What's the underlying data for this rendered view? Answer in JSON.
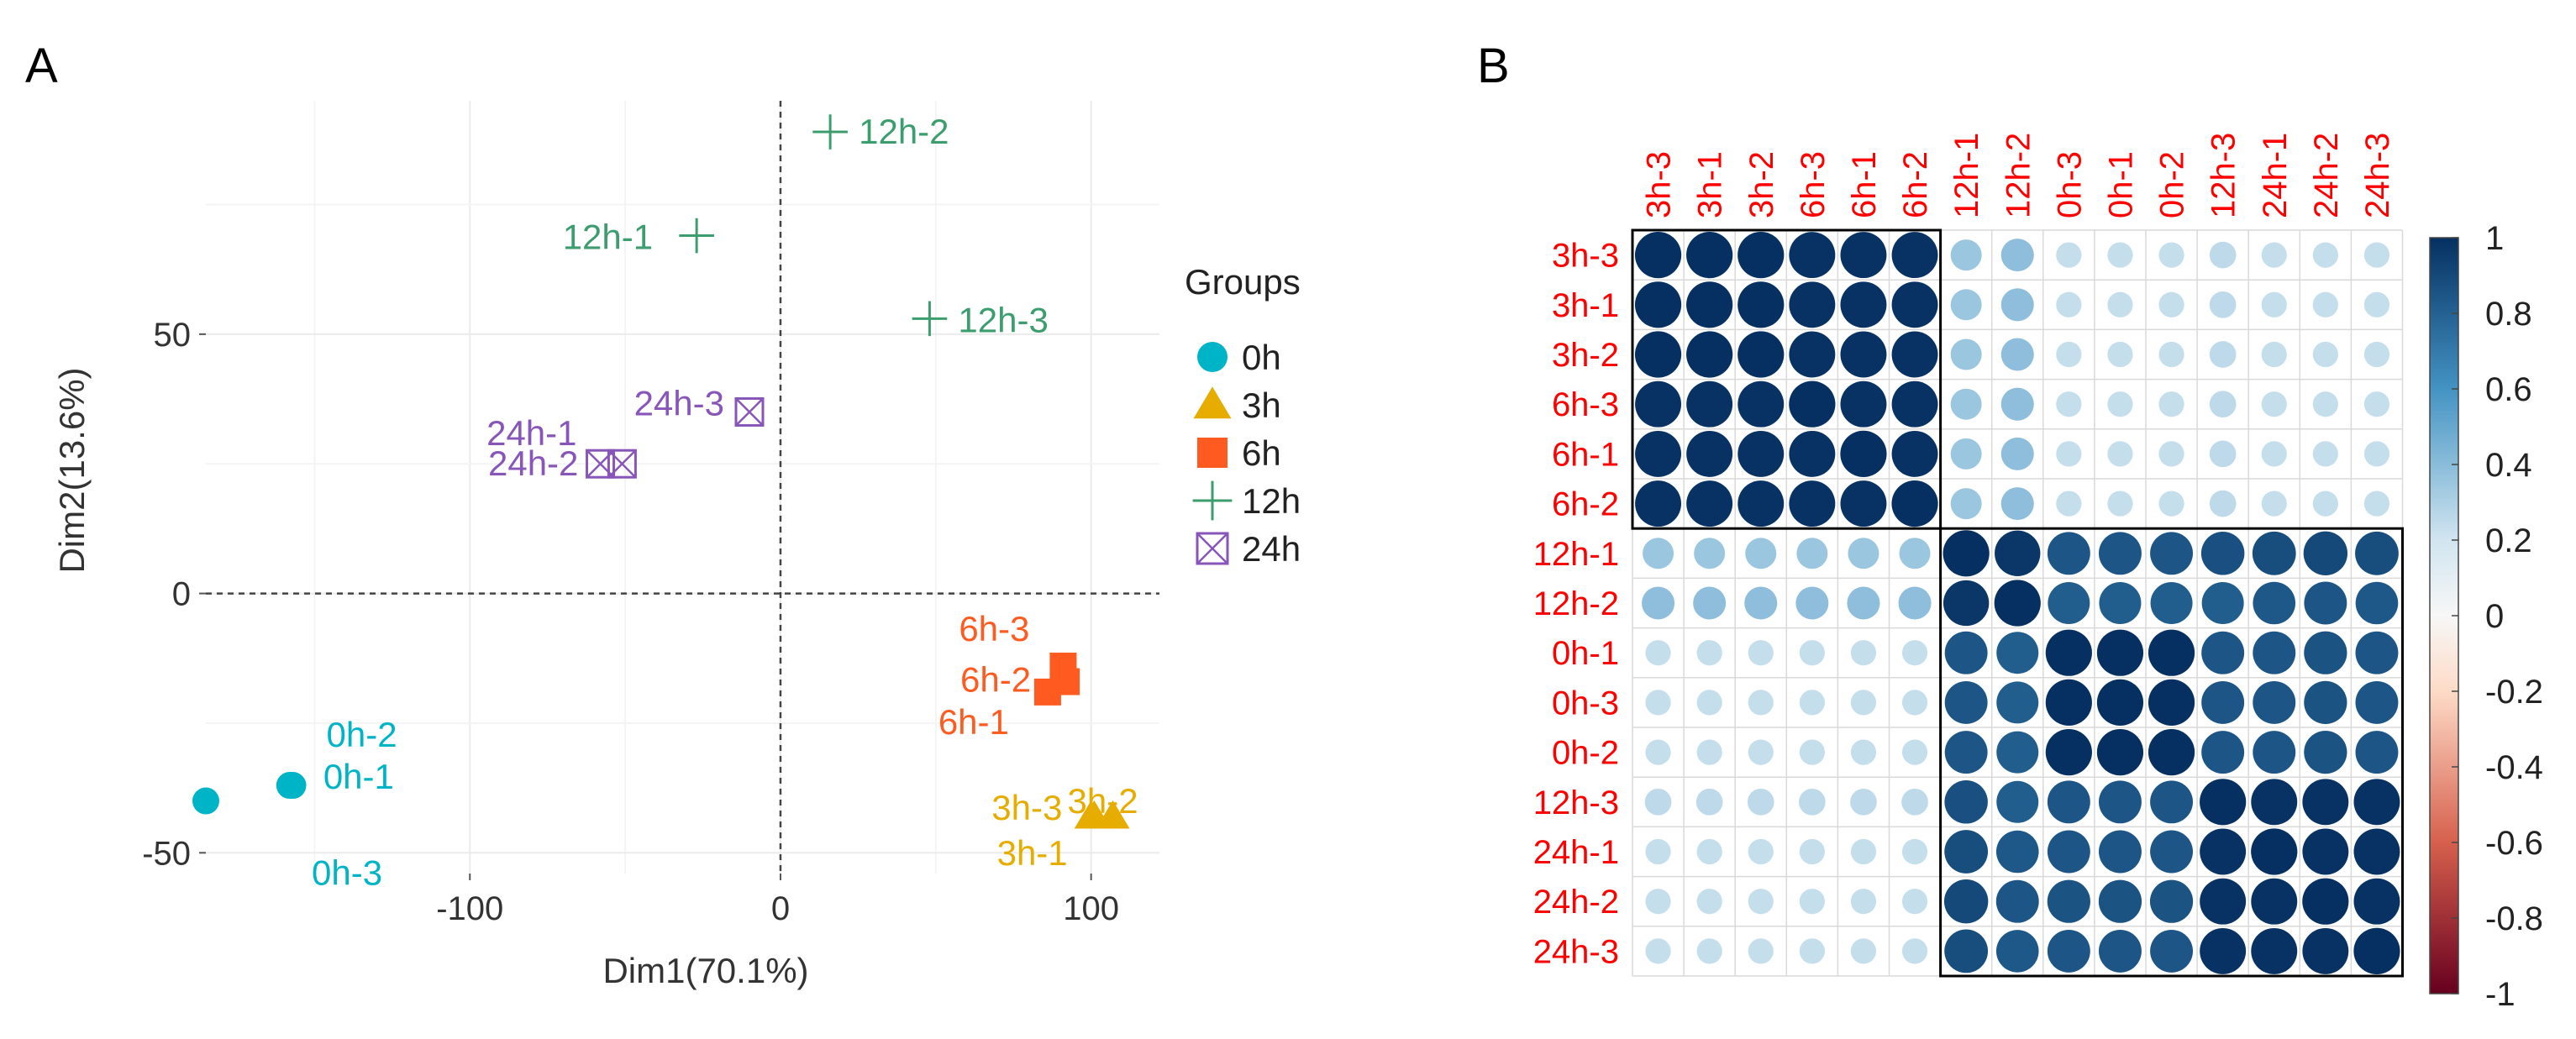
{
  "panels": {
    "a_letter": "A",
    "b_letter": "B"
  },
  "chart_data": [
    {
      "type": "scatter",
      "title": "",
      "xlabel": "Dim1(70.1%)",
      "ylabel": "Dim2(13.6%)",
      "xlim": [
        -185,
        122
      ],
      "ylim": [
        -54,
        95
      ],
      "xticks": [
        -100,
        0,
        100
      ],
      "yticks": [
        -50,
        0,
        50
      ],
      "grid": true,
      "reference_lines": {
        "x": 0,
        "y": 0
      },
      "legend": {
        "title": "Groups",
        "position": "right"
      },
      "series": [
        {
          "name": "0h",
          "marker": "circle",
          "color": "#00b4c8",
          "points": [
            {
              "label": "0h-1",
              "x": -158,
              "y": -37
            },
            {
              "label": "0h-2",
              "x": -157,
              "y": -37
            },
            {
              "label": "0h-3",
              "x": -185,
              "y": -40
            }
          ]
        },
        {
          "name": "3h",
          "marker": "triangle",
          "color": "#e6ad00",
          "points": [
            {
              "label": "3h-1",
              "x": 100,
              "y": -43
            },
            {
              "label": "3h-2",
              "x": 107,
              "y": -43
            },
            {
              "label": "3h-3",
              "x": 101,
              "y": -43
            }
          ]
        },
        {
          "name": "6h",
          "marker": "square",
          "color": "#ff5a1f",
          "points": [
            {
              "label": "6h-1",
              "x": 86,
              "y": -19
            },
            {
              "label": "6h-2",
              "x": 92,
              "y": -17
            },
            {
              "label": "6h-3",
              "x": 91,
              "y": -14
            }
          ]
        },
        {
          "name": "12h",
          "marker": "plus",
          "color": "#3c9e6e",
          "points": [
            {
              "label": "12h-1",
              "x": -27,
              "y": 69
            },
            {
              "label": "12h-2",
              "x": 16,
              "y": 89
            },
            {
              "label": "12h-3",
              "x": 48,
              "y": 53
            }
          ]
        },
        {
          "name": "24h",
          "marker": "boxx",
          "color": "#8856b8",
          "points": [
            {
              "label": "24h-1",
              "x": -58,
              "y": 25
            },
            {
              "label": "24h-2",
              "x": -51,
              "y": 25
            },
            {
              "label": "24h-3",
              "x": -10,
              "y": 35
            }
          ]
        }
      ]
    },
    {
      "type": "heatmap",
      "title": "",
      "variant": "circle correlation plot",
      "labels": [
        "3h-3",
        "3h-1",
        "3h-2",
        "6h-3",
        "6h-1",
        "6h-2",
        "12h-1",
        "12h-2",
        "0h-3",
        "0h-1",
        "0h-2",
        "12h-3",
        "24h-1",
        "24h-2",
        "24h-3"
      ],
      "row_labels": [
        "3h-3",
        "3h-1",
        "3h-2",
        "6h-3",
        "6h-1",
        "6h-2",
        "12h-1",
        "12h-2",
        "0h-1",
        "0h-3",
        "0h-2",
        "12h-3",
        "24h-1",
        "24h-2",
        "24h-3"
      ],
      "values": [
        [
          1,
          1,
          1,
          0.99,
          0.99,
          0.99,
          0.45,
          0.5,
          0.3,
          0.3,
          0.3,
          0.33,
          0.3,
          0.3,
          0.3
        ],
        [
          1,
          1,
          1,
          0.99,
          0.99,
          0.99,
          0.45,
          0.5,
          0.3,
          0.3,
          0.3,
          0.33,
          0.3,
          0.3,
          0.3
        ],
        [
          1,
          1,
          1,
          0.99,
          0.99,
          0.99,
          0.45,
          0.5,
          0.3,
          0.3,
          0.3,
          0.33,
          0.3,
          0.3,
          0.3
        ],
        [
          0.99,
          0.99,
          0.99,
          1,
          0.99,
          0.99,
          0.45,
          0.5,
          0.3,
          0.3,
          0.3,
          0.33,
          0.3,
          0.3,
          0.3
        ],
        [
          0.99,
          0.99,
          0.99,
          0.99,
          1,
          0.99,
          0.45,
          0.5,
          0.3,
          0.3,
          0.3,
          0.33,
          0.3,
          0.3,
          0.3
        ],
        [
          0.99,
          0.99,
          0.99,
          0.99,
          0.99,
          1,
          0.45,
          0.5,
          0.3,
          0.3,
          0.3,
          0.33,
          0.3,
          0.3,
          0.3
        ],
        [
          0.45,
          0.45,
          0.45,
          0.45,
          0.45,
          0.45,
          1,
          0.97,
          0.85,
          0.85,
          0.85,
          0.87,
          0.88,
          0.9,
          0.88
        ],
        [
          0.5,
          0.5,
          0.5,
          0.5,
          0.5,
          0.5,
          0.97,
          1,
          0.82,
          0.82,
          0.82,
          0.82,
          0.84,
          0.85,
          0.84
        ],
        [
          0.3,
          0.3,
          0.3,
          0.3,
          0.3,
          0.3,
          0.85,
          0.82,
          1,
          1,
          1,
          0.85,
          0.85,
          0.86,
          0.85
        ],
        [
          0.3,
          0.3,
          0.3,
          0.3,
          0.3,
          0.3,
          0.85,
          0.82,
          1,
          1,
          1,
          0.85,
          0.85,
          0.86,
          0.85
        ],
        [
          0.3,
          0.3,
          0.3,
          0.3,
          0.3,
          0.3,
          0.85,
          0.82,
          1,
          1,
          1,
          0.85,
          0.85,
          0.86,
          0.85
        ],
        [
          0.33,
          0.33,
          0.33,
          0.33,
          0.33,
          0.33,
          0.87,
          0.82,
          0.85,
          0.85,
          0.85,
          1,
          0.99,
          0.99,
          0.99
        ],
        [
          0.3,
          0.3,
          0.3,
          0.3,
          0.3,
          0.3,
          0.88,
          0.84,
          0.85,
          0.85,
          0.85,
          0.99,
          1,
          0.99,
          0.99
        ],
        [
          0.3,
          0.3,
          0.3,
          0.3,
          0.3,
          0.3,
          0.9,
          0.85,
          0.86,
          0.86,
          0.86,
          0.99,
          0.99,
          1,
          0.99
        ],
        [
          0.3,
          0.3,
          0.3,
          0.3,
          0.3,
          0.3,
          0.88,
          0.84,
          0.85,
          0.85,
          0.85,
          0.99,
          0.99,
          0.99,
          1
        ]
      ],
      "clusters": [
        [
          0,
          5
        ],
        [
          6,
          14
        ]
      ],
      "colorbar": {
        "range": [
          -1,
          1
        ],
        "ticks": [
          "1",
          "0.8",
          "0.6",
          "0.4",
          "0.2",
          "0",
          "-0.2",
          "-0.4",
          "-0.6",
          "-0.8",
          "-1"
        ]
      },
      "label_color": "#ff0000"
    }
  ]
}
